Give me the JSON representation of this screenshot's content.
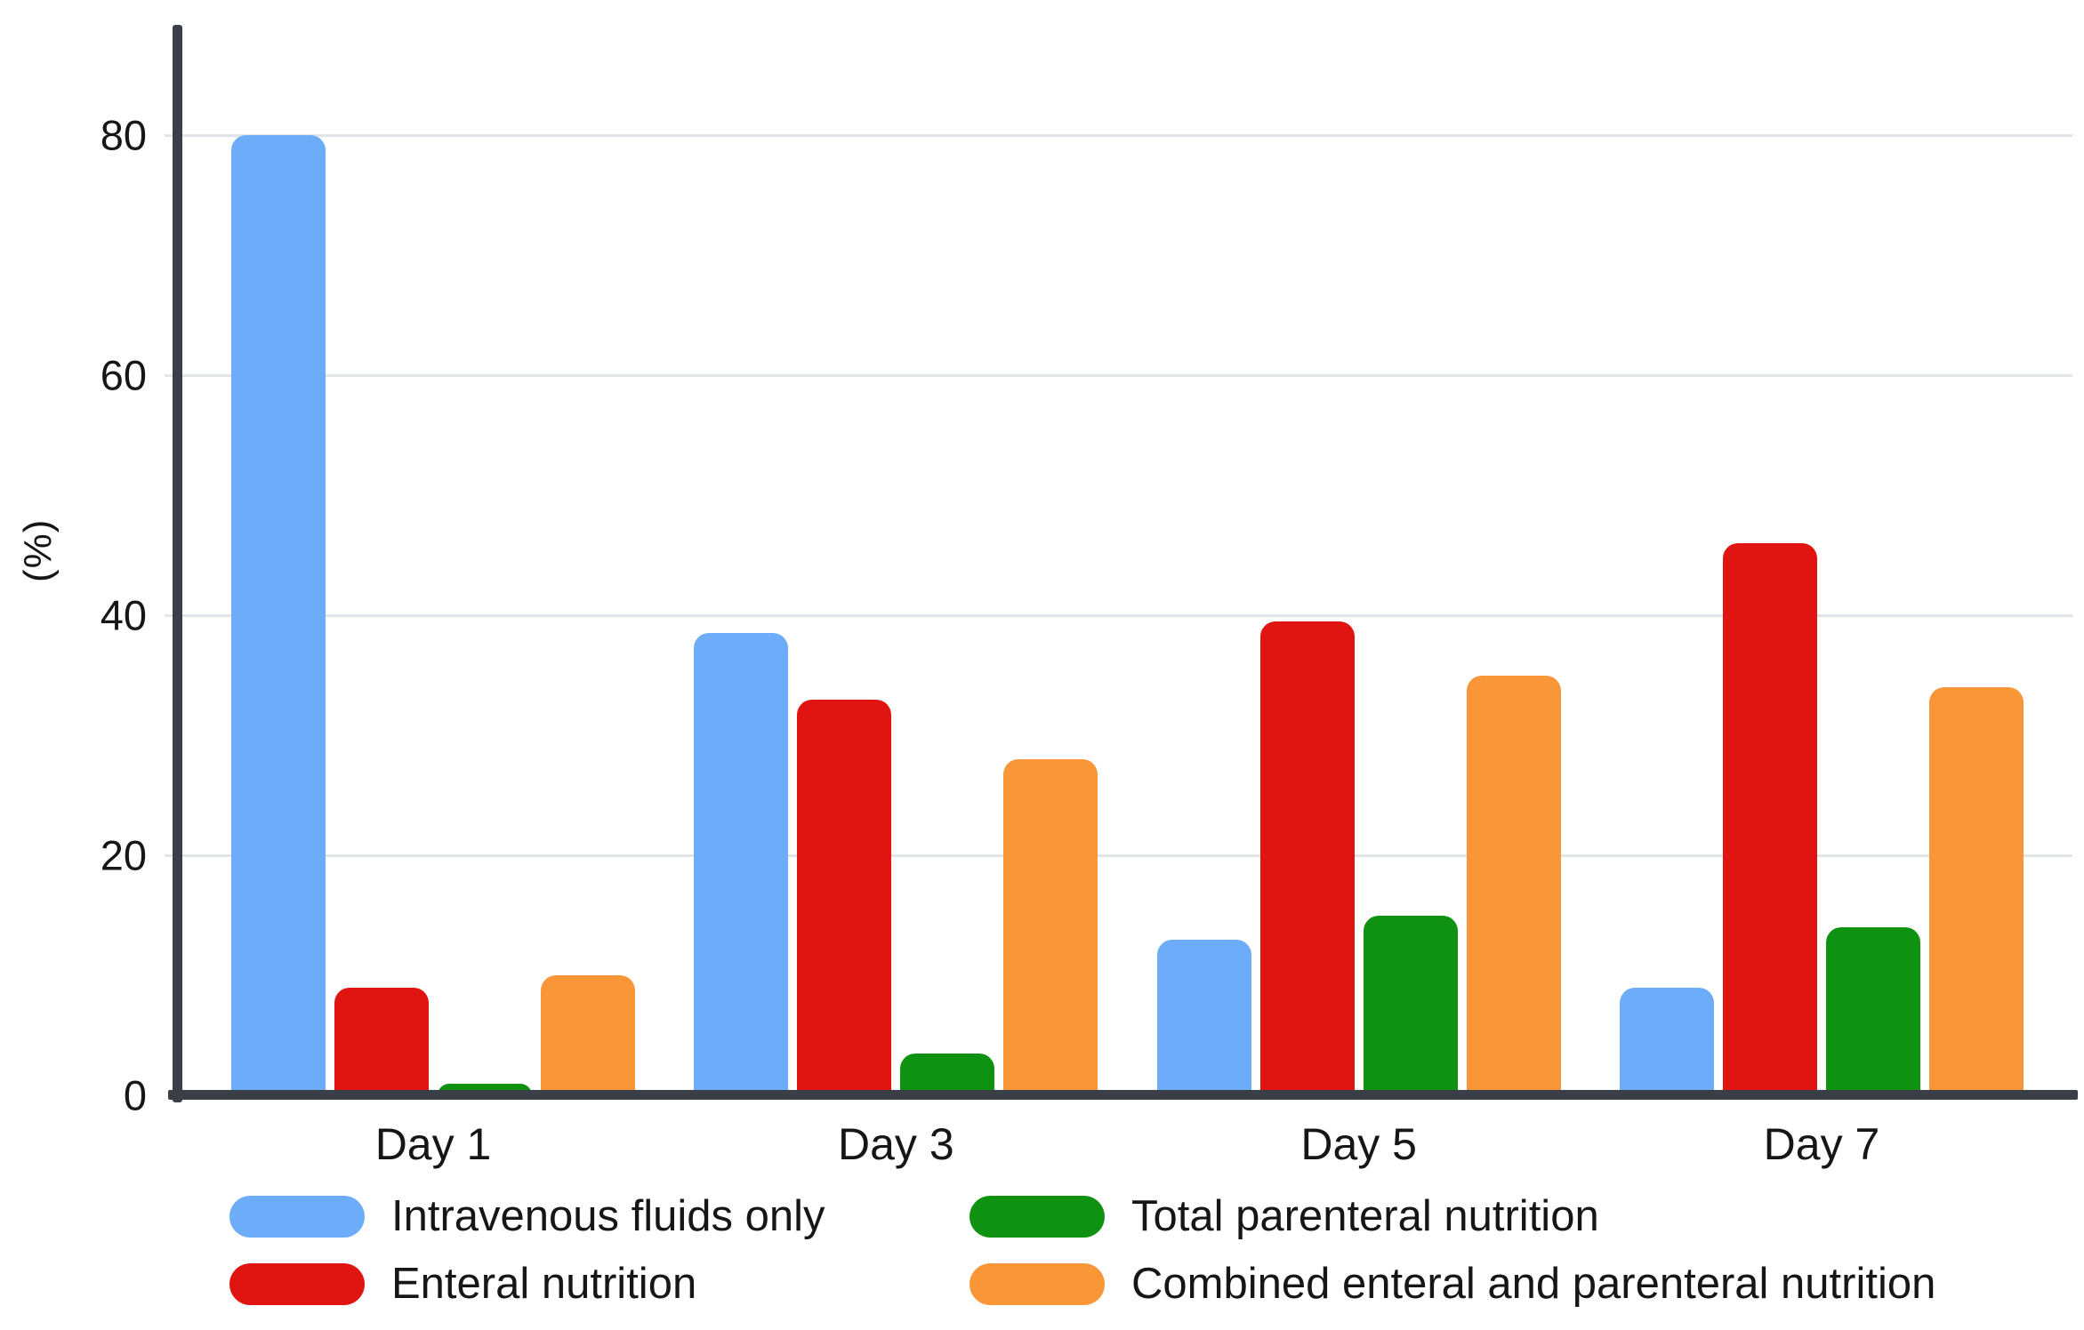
{
  "chart_data": {
    "type": "bar",
    "title": "",
    "categories": [
      "Day 1",
      "Day 3",
      "Day 5",
      "Day 7"
    ],
    "series": [
      {
        "name": "Intravenous fluids only",
        "color": "#6cacf8",
        "values": [
          80,
          38.5,
          13,
          9
        ]
      },
      {
        "name": "Enteral nutrition",
        "color": "#e01512",
        "values": [
          9,
          33,
          39.5,
          46
        ]
      },
      {
        "name": "Total parenteral nutrition",
        "color": "#0f9212",
        "values": [
          1,
          3.5,
          15,
          14
        ]
      },
      {
        "name": "Combined enteral and parenteral nutrition",
        "color": "#f89638",
        "values": [
          10,
          28,
          35,
          34
        ]
      }
    ],
    "ylabel": "(%)",
    "yticks": [
      0,
      20,
      40,
      60,
      80
    ],
    "ylim": [
      0,
      88
    ],
    "grid": true,
    "gridline_color": "#e1e5ea",
    "axis_color": "#3a3f47",
    "legend_position": "bottom",
    "legend_columns": [
      [
        0,
        1
      ],
      [
        2,
        3
      ]
    ]
  }
}
